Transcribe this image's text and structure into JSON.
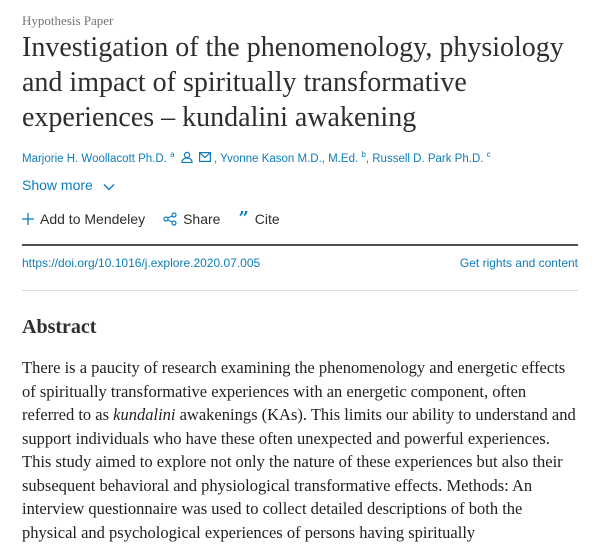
{
  "article_type": "Hypothesis Paper",
  "title": "Investigation of the phenomenology, physiology and impact of spiritually transformative experiences – kundalini awakening",
  "authors": [
    {
      "name": "Marjorie H. Woollacott Ph.D.",
      "sup": "a"
    },
    {
      "name": "Yvonne Kason M.D., M.Ed.",
      "sup": "b"
    },
    {
      "name": "Russell D. Park Ph.D.",
      "sup": "c"
    }
  ],
  "show_more": "Show more",
  "actions": {
    "mendeley": "Add to Mendeley",
    "share": "Share",
    "cite": "Cite"
  },
  "doi": "https://doi.org/10.1016/j.explore.2020.07.005",
  "rights": "Get rights and content",
  "abstract": {
    "heading": "Abstract",
    "p1": "There is a paucity of research examining the phenomenology and energetic effects of spiritually transformative experiences with an energetic component, often referred to as ",
    "italic": "kundalini",
    "p2": " awakenings (KAs). This limits our ability to understand and support individuals who have these often unexpected and powerful experiences. This study aimed to explore not only the nature of these experiences but also their subsequent behavioral and physiological transformative effects. Methods: An interview questionnaire was used to collect detailed descriptions of both the physical and psychological experiences of persons having spiritually"
  },
  "colors": {
    "link": "#0c7dbb",
    "text": "#2e2e2e"
  }
}
